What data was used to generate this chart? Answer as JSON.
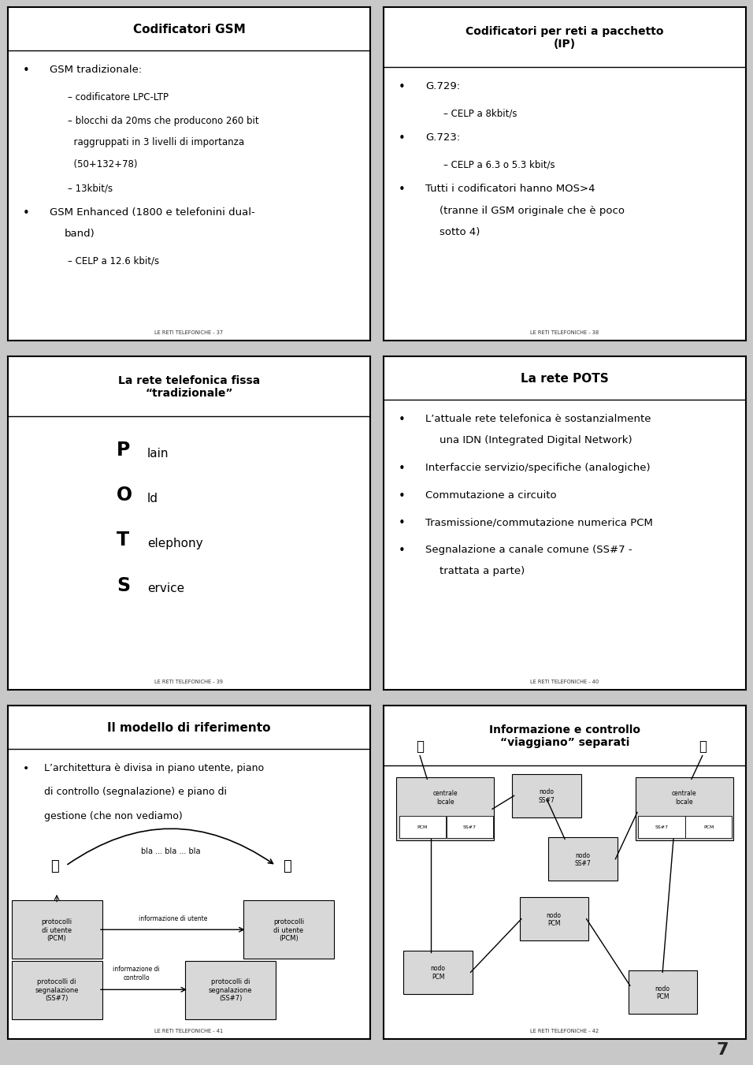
{
  "bg_color": "#c8c8c8",
  "slide_bg": "#ffffff",
  "border_color": "#000000",
  "title_bar_color": "#f0f0f0",
  "page_number": "7",
  "slides": [
    {
      "title": "Codificatori GSM",
      "title_multiline": false,
      "footer": "LE RETI TELEFONICHE - 37",
      "content_type": "bullets",
      "bullets": [
        {
          "level": 0,
          "text": "GSM tradizionale:"
        },
        {
          "level": 1,
          "text": "– codificatore LPC-LTP"
        },
        {
          "level": 1,
          "text": "– blocchi da 20ms che producono 260 bit\n  raggruppati in 3 livelli di importanza\n  (50+132+78)"
        },
        {
          "level": 1,
          "text": "– 13kbit/s"
        },
        {
          "level": 0,
          "text": "GSM Enhanced (1800 e telefonini dual-\nband)"
        },
        {
          "level": 1,
          "text": "– CELP a 12.6 kbit/s"
        }
      ]
    },
    {
      "title": "Codificatori per reti a pacchetto\n(IP)",
      "title_multiline": true,
      "footer": "LE RETI TELEFONICHE - 38",
      "content_type": "bullets",
      "bullets": [
        {
          "level": 0,
          "text": "G.729:"
        },
        {
          "level": 1,
          "text": "– CELP a 8kbit/s"
        },
        {
          "level": 0,
          "text": "G.723:"
        },
        {
          "level": 1,
          "text": "– CELP a 6.3 o 5.3 kbit/s"
        },
        {
          "level": 0,
          "text": "Tutti i codificatori hanno MOS>4\n(tranne il GSM originale che è poco\nsotto 4)"
        }
      ]
    },
    {
      "title": "La rete telefonica fissa\n“tradizionale”",
      "title_multiline": true,
      "footer": "LE RETI TELEFONICHE - 39",
      "content_type": "pots",
      "pots_lines": [
        {
          "big": "P",
          "small": "lain"
        },
        {
          "big": "O",
          "small": "ld"
        },
        {
          "big": "T",
          "small": "elephony"
        },
        {
          "big": "S",
          "small": "ervice"
        }
      ]
    },
    {
      "title": "La rete POTS",
      "title_multiline": false,
      "footer": "LE RETI TELEFONICHE - 40",
      "content_type": "bullets",
      "bullets": [
        {
          "level": 0,
          "text": "L’attuale rete telefonica è sostanzialmente\nuna IDN (Integrated Digital Network)"
        },
        {
          "level": 0,
          "text": "Interfaccie servizio/specifiche (analogiche)"
        },
        {
          "level": 0,
          "text": "Commutazione a circuito"
        },
        {
          "level": 0,
          "text": "Trasmissione/commutazione numerica PCM"
        },
        {
          "level": 0,
          "text": "Segnalazione a canale comune (SS#7 -\ntrattata a parte)"
        }
      ]
    },
    {
      "title": "Il modello di riferimento",
      "title_multiline": false,
      "footer": "LE RETI TELEFONICHE - 41",
      "content_type": "modello"
    },
    {
      "title": "Informazione e controllo\n“viagggiano” separati",
      "title_multiline": true,
      "footer": "LE RETI TELEFONICHE - 42",
      "content_type": "network"
    }
  ]
}
